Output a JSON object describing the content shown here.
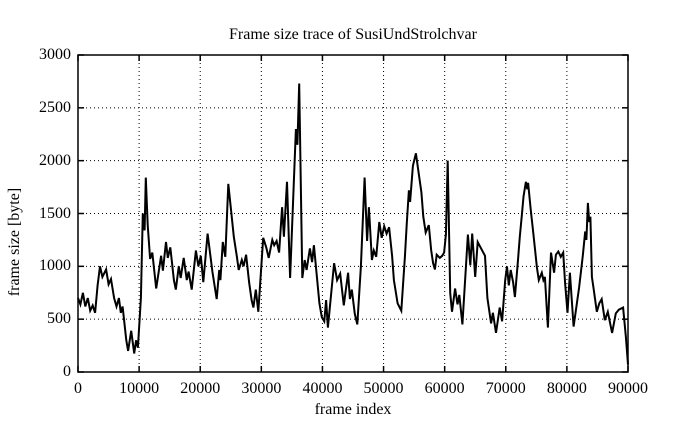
{
  "chart_data": {
    "type": "line",
    "title": "Frame size trace of SusiUndStrolchvar",
    "xlabel": "frame index",
    "ylabel": "frame size [byte]",
    "xlim": [
      0,
      90000
    ],
    "ylim": [
      0,
      3000
    ],
    "x_tick_values": [
      0,
      10000,
      20000,
      30000,
      40000,
      50000,
      60000,
      70000,
      80000,
      90000
    ],
    "x_tick_labels": [
      "0",
      "10000",
      "20000",
      "30000",
      "40000",
      "50000",
      "60000",
      "70000",
      "80000",
      "90000"
    ],
    "y_tick_values": [
      0,
      500,
      1000,
      1500,
      2000,
      2500,
      3000
    ],
    "y_tick_labels": [
      "0",
      "500",
      "1000",
      "1500",
      "2000",
      "2500",
      "3000"
    ],
    "grid": true,
    "grid_style": "dotted",
    "legend": "none",
    "line_color": "#000000",
    "axis_color": "#000000",
    "background_color": "#ffffff",
    "series": [
      {
        "name": "frame size trace",
        "points": [
          [
            0,
            700
          ],
          [
            400,
            640
          ],
          [
            800,
            750
          ],
          [
            1200,
            620
          ],
          [
            1600,
            700
          ],
          [
            2000,
            580
          ],
          [
            2400,
            630
          ],
          [
            2800,
            560
          ],
          [
            3200,
            820
          ],
          [
            3600,
            1000
          ],
          [
            4000,
            900
          ],
          [
            4600,
            970
          ],
          [
            5000,
            830
          ],
          [
            5400,
            880
          ],
          [
            5900,
            700
          ],
          [
            6300,
            620
          ],
          [
            6700,
            700
          ],
          [
            7000,
            560
          ],
          [
            7300,
            620
          ],
          [
            7900,
            300
          ],
          [
            8200,
            200
          ],
          [
            8700,
            390
          ],
          [
            9200,
            175
          ],
          [
            9500,
            300
          ],
          [
            9800,
            230
          ],
          [
            10300,
            700
          ],
          [
            10600,
            1500
          ],
          [
            10900,
            1340
          ],
          [
            11100,
            1840
          ],
          [
            11400,
            1390
          ],
          [
            11800,
            1070
          ],
          [
            12150,
            1130
          ],
          [
            12800,
            790
          ],
          [
            13600,
            1100
          ],
          [
            13900,
            960
          ],
          [
            14400,
            1230
          ],
          [
            14700,
            1080
          ],
          [
            15100,
            1180
          ],
          [
            15700,
            870
          ],
          [
            16000,
            780
          ],
          [
            16500,
            1000
          ],
          [
            16800,
            890
          ],
          [
            17300,
            1080
          ],
          [
            17800,
            870
          ],
          [
            18100,
            950
          ],
          [
            18600,
            780
          ],
          [
            19300,
            1150
          ],
          [
            19700,
            1000
          ],
          [
            20100,
            1100
          ],
          [
            20500,
            850
          ],
          [
            21200,
            1310
          ],
          [
            22000,
            950
          ],
          [
            22700,
            690
          ],
          [
            23100,
            965
          ],
          [
            23300,
            870
          ],
          [
            23700,
            1230
          ],
          [
            24100,
            1090
          ],
          [
            24600,
            1780
          ],
          [
            25100,
            1500
          ],
          [
            25500,
            1280
          ],
          [
            26000,
            1090
          ],
          [
            26300,
            965
          ],
          [
            26800,
            1060
          ],
          [
            27100,
            1000
          ],
          [
            27500,
            1110
          ],
          [
            28000,
            850
          ],
          [
            28400,
            680
          ],
          [
            28700,
            610
          ],
          [
            29100,
            780
          ],
          [
            29500,
            570
          ],
          [
            30300,
            1270
          ],
          [
            30800,
            1180
          ],
          [
            31200,
            1080
          ],
          [
            31800,
            1250
          ],
          [
            32100,
            1200
          ],
          [
            32500,
            1240
          ],
          [
            32900,
            1130
          ],
          [
            33400,
            1560
          ],
          [
            33700,
            1280
          ],
          [
            34200,
            1800
          ],
          [
            34700,
            890
          ],
          [
            35650,
            2300
          ],
          [
            35900,
            2150
          ],
          [
            36200,
            2730
          ],
          [
            36700,
            890
          ],
          [
            37100,
            1060
          ],
          [
            37400,
            965
          ],
          [
            37950,
            1170
          ],
          [
            38300,
            1040
          ],
          [
            38600,
            1200
          ],
          [
            39100,
            900
          ],
          [
            39500,
            650
          ],
          [
            39900,
            520
          ],
          [
            40300,
            480
          ],
          [
            40600,
            680
          ],
          [
            40900,
            420
          ],
          [
            41900,
            1030
          ],
          [
            42400,
            870
          ],
          [
            42900,
            930
          ],
          [
            43500,
            630
          ],
          [
            44200,
            940
          ],
          [
            44500,
            690
          ],
          [
            44800,
            780
          ],
          [
            45300,
            550
          ],
          [
            45700,
            450
          ],
          [
            46300,
            1000
          ],
          [
            46900,
            1840
          ],
          [
            47300,
            1240
          ],
          [
            47600,
            1560
          ],
          [
            48100,
            1060
          ],
          [
            48400,
            1150
          ],
          [
            48800,
            1090
          ],
          [
            49300,
            1420
          ],
          [
            49700,
            1270
          ],
          [
            50100,
            1380
          ],
          [
            50500,
            1310
          ],
          [
            50900,
            1370
          ],
          [
            51400,
            1100
          ],
          [
            51700,
            870
          ],
          [
            52300,
            650
          ],
          [
            52900,
            580
          ],
          [
            53500,
            1090
          ],
          [
            53800,
            1410
          ],
          [
            54150,
            1720
          ],
          [
            54350,
            1610
          ],
          [
            54800,
            1950
          ],
          [
            55300,
            2070
          ],
          [
            55700,
            1900
          ],
          [
            56200,
            1700
          ],
          [
            56500,
            1470
          ],
          [
            56900,
            1320
          ],
          [
            57400,
            1390
          ],
          [
            57800,
            1150
          ],
          [
            58100,
            1030
          ],
          [
            58400,
            970
          ],
          [
            58700,
            1110
          ],
          [
            59200,
            1080
          ],
          [
            59600,
            1100
          ],
          [
            59900,
            1130
          ],
          [
            60200,
            1300
          ],
          [
            60500,
            2000
          ],
          [
            60900,
            750
          ],
          [
            61200,
            570
          ],
          [
            61700,
            790
          ],
          [
            62100,
            640
          ],
          [
            62400,
            730
          ],
          [
            62900,
            450
          ],
          [
            63800,
            1300
          ],
          [
            64200,
            1010
          ],
          [
            64500,
            1310
          ],
          [
            65000,
            900
          ],
          [
            65400,
            1230
          ],
          [
            66600,
            1100
          ],
          [
            67000,
            700
          ],
          [
            67600,
            460
          ],
          [
            67900,
            560
          ],
          [
            68400,
            370
          ],
          [
            69000,
            610
          ],
          [
            69400,
            480
          ],
          [
            69900,
            870
          ],
          [
            70200,
            1000
          ],
          [
            70500,
            820
          ],
          [
            70800,
            965
          ],
          [
            71200,
            850
          ],
          [
            71500,
            710
          ],
          [
            72000,
            1060
          ],
          [
            72300,
            1280
          ],
          [
            72650,
            1500
          ],
          [
            72900,
            1660
          ],
          [
            73300,
            1800
          ],
          [
            73500,
            1730
          ],
          [
            73650,
            1790
          ],
          [
            74100,
            1530
          ],
          [
            74450,
            1340
          ],
          [
            74750,
            1180
          ],
          [
            75100,
            990
          ],
          [
            75400,
            870
          ],
          [
            75900,
            940
          ],
          [
            76150,
            870
          ],
          [
            76400,
            900
          ],
          [
            76900,
            420
          ],
          [
            77400,
            1130
          ],
          [
            77900,
            940
          ],
          [
            78200,
            1110
          ],
          [
            78600,
            1140
          ],
          [
            79000,
            1090
          ],
          [
            79400,
            1130
          ],
          [
            79700,
            840
          ],
          [
            80100,
            560
          ],
          [
            80500,
            940
          ],
          [
            81100,
            430
          ],
          [
            82000,
            800
          ],
          [
            82600,
            1100
          ],
          [
            83000,
            1330
          ],
          [
            83200,
            1250
          ],
          [
            83440,
            1600
          ],
          [
            83650,
            1420
          ],
          [
            83850,
            1470
          ],
          [
            84100,
            900
          ],
          [
            84400,
            776
          ],
          [
            84900,
            570
          ],
          [
            85300,
            650
          ],
          [
            85700,
            690
          ],
          [
            86200,
            490
          ],
          [
            86700,
            570
          ],
          [
            87400,
            370
          ],
          [
            88000,
            555
          ],
          [
            88500,
            590
          ],
          [
            89200,
            610
          ],
          [
            89650,
            330
          ],
          [
            90000,
            70
          ]
        ]
      }
    ]
  }
}
